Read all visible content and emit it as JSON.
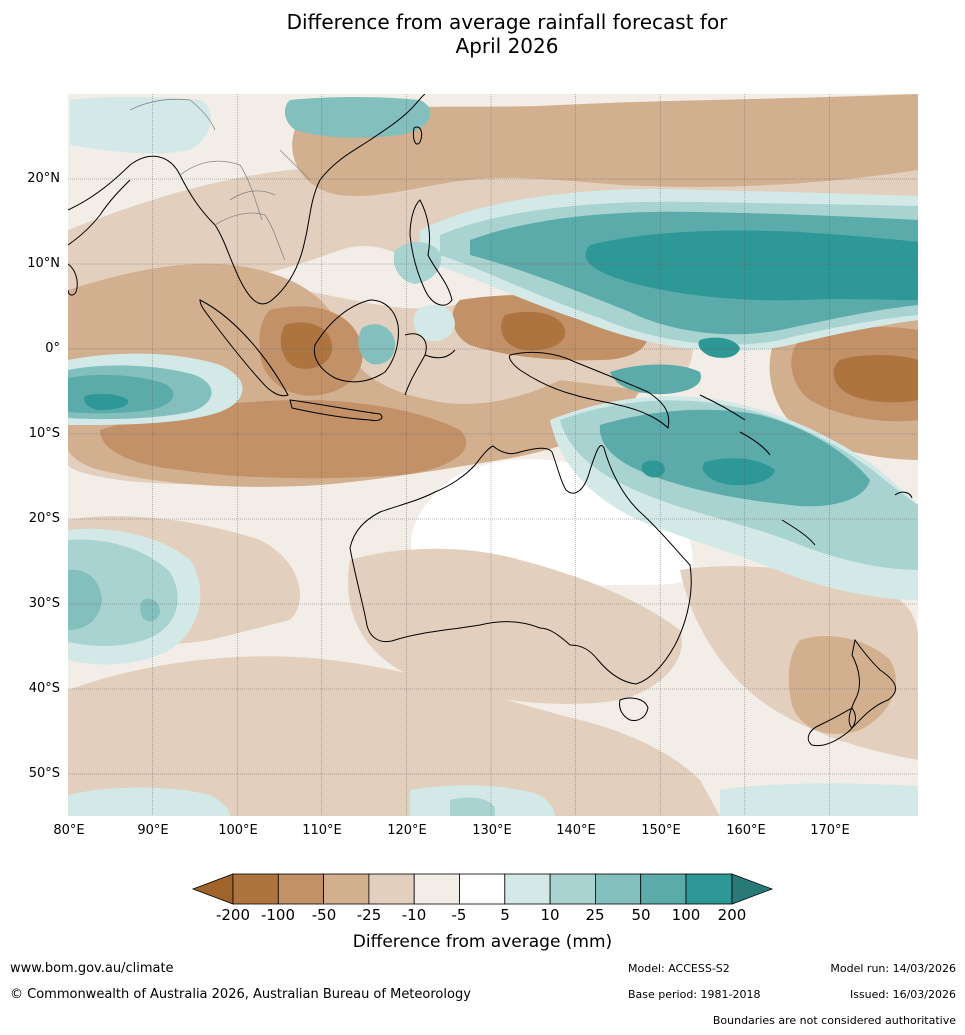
{
  "title": {
    "line1": "Difference from average rainfall forecast for",
    "line2": "April 2026"
  },
  "map": {
    "lat_labels": [
      "20°N",
      "10°N",
      "0°",
      "10°S",
      "20°S",
      "30°S",
      "40°S",
      "50°S"
    ],
    "lon_labels": [
      "80°E",
      "90°E",
      "100°E",
      "110°E",
      "120°E",
      "130°E",
      "140°E",
      "150°E",
      "160°E",
      "170°E"
    ],
    "extent": {
      "lon_min": 80,
      "lon_max": 180,
      "lat_min": -55,
      "lat_max": 30
    },
    "colors": {
      "dry_200": "#a0632a",
      "dry_100": "#ae7440",
      "dry_50": "#c29167",
      "dry_25": "#d2b08f",
      "dry_10": "#e3cfbd",
      "dry_5": "#f2ede7",
      "neutral": "#ffffff",
      "wet_5": "#d3e9e7",
      "wet_10": "#a8d3d0",
      "wet_25": "#83bfbd",
      "wet_50": "#5aabaa",
      "wet_100": "#2d9896",
      "wet_200": "#277a78"
    }
  },
  "legend": {
    "ticks": [
      "-200",
      "-100",
      "-50",
      "-25",
      "-10",
      "-5",
      "5",
      "10",
      "25",
      "50",
      "100",
      "200"
    ],
    "title": "Difference from average (mm)"
  },
  "footer": {
    "website": "www.bom.gov.au/climate",
    "copyright": "© Commonwealth of Australia 2026, Australian Bureau of Meteorology",
    "model": "Model: ACCESS-S2",
    "base_period": "Base period: 1981-2018",
    "model_run": "Model run: 14/03/2026",
    "issued": "Issued: 16/03/2026",
    "disclaimer": "Boundaries are not considered authoritative"
  }
}
